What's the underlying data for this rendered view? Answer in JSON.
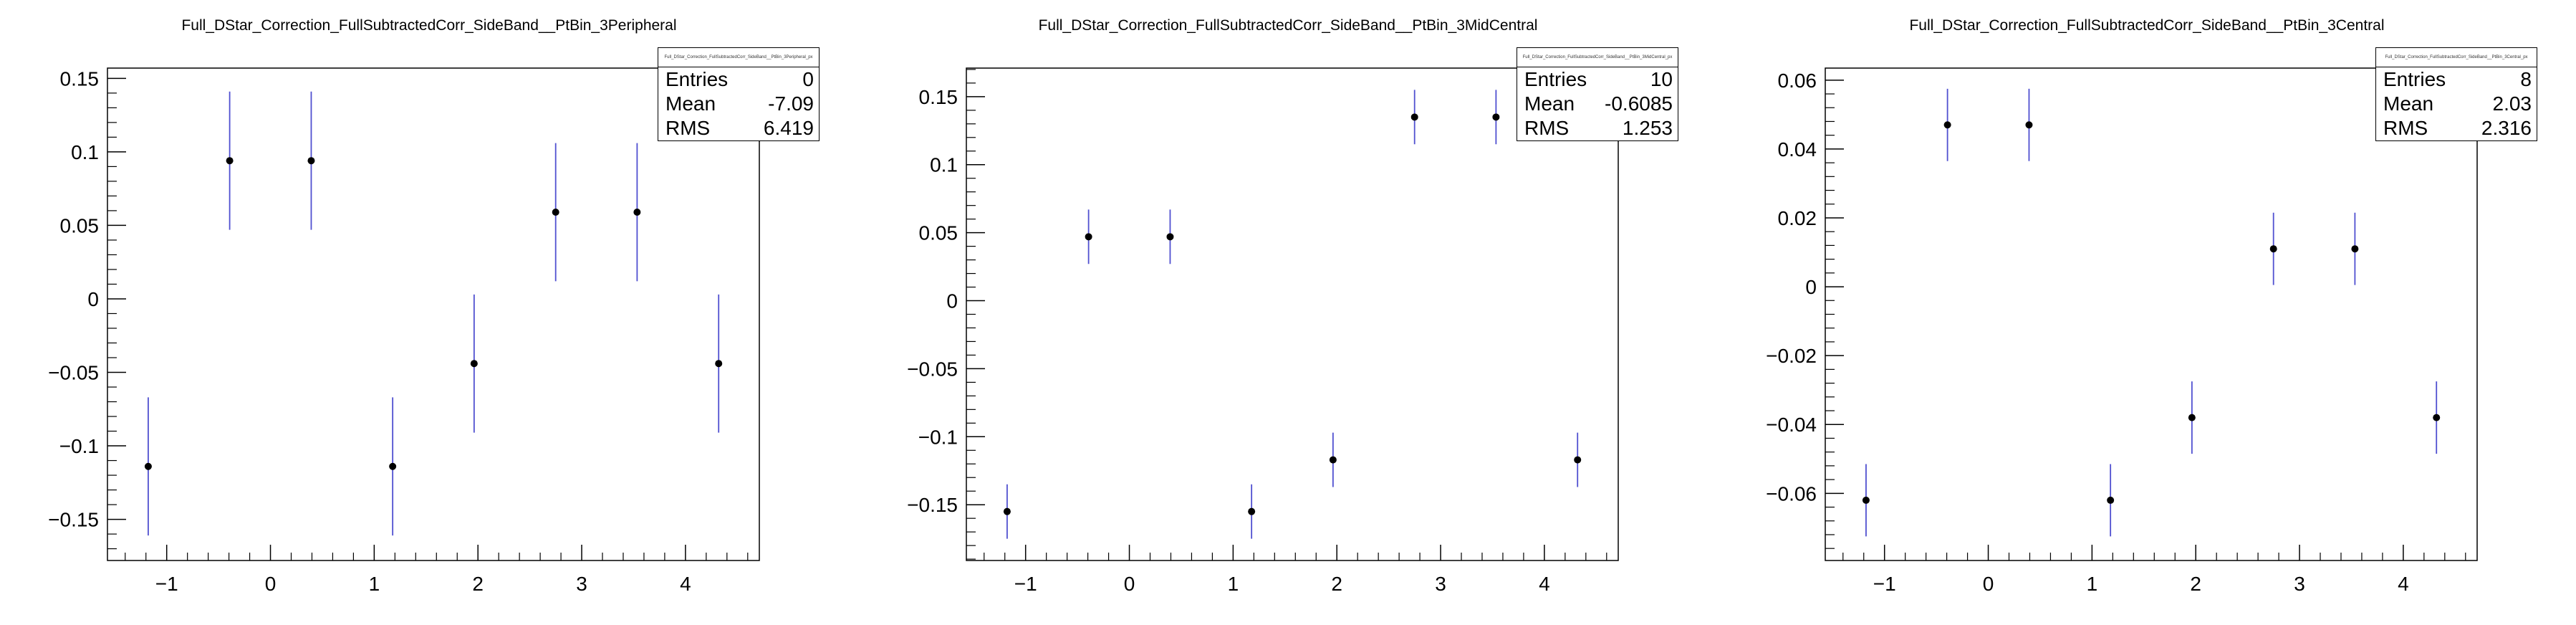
{
  "chart_data": [
    {
      "type": "scatter",
      "title": "Full_DStar_Correction_FullSubtractedCorr_SideBand__PtBin_3Peripheral",
      "stats_box": {
        "name": "Full_DStar_Correction_FullSubtractedCorr_SideBand__PtBin_3Peripheral_px",
        "entries_label": "Entries",
        "entries": "0",
        "mean_label": "Mean",
        "mean": "-7.09",
        "rms_label": "RMS",
        "rms": "6.419"
      },
      "x": [
        -1.178,
        -0.393,
        0.393,
        1.178,
        1.963,
        2.749,
        3.534,
        4.32
      ],
      "y": [
        -0.114,
        0.094,
        0.094,
        -0.114,
        -0.044,
        0.059,
        0.059,
        -0.044
      ],
      "yerr": [
        0.047,
        0.047,
        0.047,
        0.047,
        0.047,
        0.047,
        0.047,
        0.047
      ],
      "xlim": [
        -1.571,
        4.712
      ],
      "ylim": [
        -0.178,
        0.157
      ],
      "xticks": [
        -1,
        0,
        1,
        2,
        3,
        4
      ],
      "xtick_labels": [
        "−1",
        "0",
        "1",
        "2",
        "3",
        "4"
      ],
      "yticks": [
        0.15,
        0.1,
        0.05,
        0,
        -0.05,
        -0.1,
        -0.15
      ],
      "ytick_labels": [
        "0.15",
        "0.1",
        "0.05",
        "0",
        "−0.05",
        "−0.1",
        "−0.15"
      ],
      "error_bar_color": "#5050d0",
      "marker_color": "#000000",
      "grid": false
    },
    {
      "type": "scatter",
      "title": "Full_DStar_Correction_FullSubtractedCorr_SideBand__PtBin_3MidCentral",
      "stats_box": {
        "name": "Full_DStar_Correction_FullSubtractedCorr_SideBand__PtBin_3MidCentral_px",
        "entries_label": "Entries",
        "entries": "10",
        "mean_label": "Mean",
        "mean": "-0.6085",
        "rms_label": "RMS",
        "rms": "1.253"
      },
      "x": [
        -1.178,
        -0.393,
        0.393,
        1.178,
        1.963,
        2.749,
        3.534,
        4.32
      ],
      "y": [
        -0.155,
        0.047,
        0.047,
        -0.155,
        -0.117,
        0.135,
        0.135,
        -0.117
      ],
      "yerr": [
        0.02,
        0.02,
        0.02,
        0.02,
        0.02,
        0.02,
        0.02,
        0.02
      ],
      "xlim": [
        -1.571,
        4.712
      ],
      "ylim": [
        -0.191,
        0.171
      ],
      "xticks": [
        -1,
        0,
        1,
        2,
        3,
        4
      ],
      "xtick_labels": [
        "−1",
        "0",
        "1",
        "2",
        "3",
        "4"
      ],
      "yticks": [
        0.15,
        0.1,
        0.05,
        0,
        -0.05,
        -0.1,
        -0.15
      ],
      "ytick_labels": [
        "0.15",
        "0.1",
        "0.05",
        "0",
        "−0.05",
        "−0.1",
        "−0.15"
      ],
      "error_bar_color": "#5050d0",
      "marker_color": "#000000",
      "grid": false
    },
    {
      "type": "scatter",
      "title": "Full_DStar_Correction_FullSubtractedCorr_SideBand__PtBin_3Central",
      "stats_box": {
        "name": "Full_DStar_Correction_FullSubtractedCorr_SideBand__PtBin_3Central_px",
        "entries_label": "Entries",
        "entries": "8",
        "mean_label": "Mean",
        "mean": "2.03",
        "rms_label": "RMS",
        "rms": "2.316"
      },
      "x": [
        -1.178,
        -0.393,
        0.393,
        1.178,
        1.963,
        2.749,
        3.534,
        4.32
      ],
      "y": [
        -0.062,
        0.047,
        0.047,
        -0.062,
        -0.038,
        0.011,
        0.011,
        -0.038
      ],
      "yerr": [
        0.0105,
        0.0105,
        0.0105,
        0.0105,
        0.0105,
        0.0105,
        0.0105,
        0.0105
      ],
      "xlim": [
        -1.571,
        4.712
      ],
      "ylim": [
        -0.0795,
        0.0635
      ],
      "xticks": [
        -1,
        0,
        1,
        2,
        3,
        4
      ],
      "xtick_labels": [
        "−1",
        "0",
        "1",
        "2",
        "3",
        "4"
      ],
      "yticks": [
        0.06,
        0.04,
        0.02,
        0,
        -0.02,
        -0.04,
        -0.06
      ],
      "ytick_labels": [
        "0.06",
        "0.04",
        "0.02",
        "0",
        "−0.02",
        "−0.04",
        "−0.06"
      ],
      "error_bar_color": "#5050d0",
      "marker_color": "#000000",
      "grid": false
    }
  ]
}
